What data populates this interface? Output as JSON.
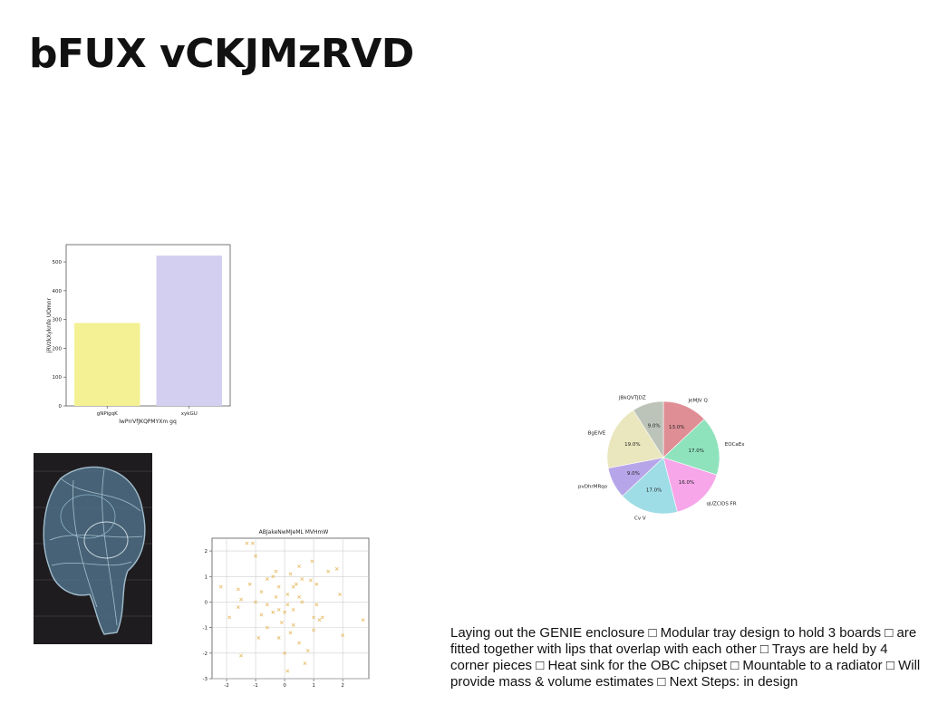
{
  "slide": {
    "title": "bFUX vCKJMzRVD",
    "body_text": "Laying out the GENIE enclosure □ Modular tray design to hold 3 boards □ are fitted together with lips that overlap with each other □ Trays are held by 4 corner pieces □ Heat sink for the OBC chipset □ Mountable to a radiator □ Will provide mass & volume estimates □ Next Steps: in design"
  },
  "image": {
    "icon": "brain-wireframe-image"
  },
  "chart_data": [
    {
      "type": "bar",
      "title": "",
      "xlabel": "lwPrrVfJKQPMYXm gq",
      "ylabel": "jRVzkXyknfe UOmnr",
      "categories": [
        "gNPlgqK",
        "xykGU"
      ],
      "values": [
        288,
        522
      ],
      "colors": [
        "#f3f193",
        "#d3cff0"
      ],
      "ylim": [
        0,
        560
      ],
      "yticks": [
        "0",
        "100",
        "200",
        "300",
        "400",
        "500"
      ],
      "grid": false
    },
    {
      "type": "scatter",
      "title": "ABJakeNwMJeML MVHmW",
      "xlim": [
        -2.5,
        2.9
      ],
      "ylim": [
        -3,
        2.5
      ],
      "xticks": [
        "-2",
        "-1",
        "0",
        "1",
        "2"
      ],
      "yticks": [
        "-3",
        "-2",
        "-1",
        "0",
        "1",
        "2"
      ],
      "grid": true,
      "marker": "x",
      "color": "#e8c070",
      "points": [
        [
          -1.1,
          2.3
        ],
        [
          -1.3,
          2.3
        ],
        [
          -1,
          1.8
        ],
        [
          0.95,
          1.6
        ],
        [
          0.5,
          1.4
        ],
        [
          1.5,
          1.2
        ],
        [
          -0.3,
          1.2
        ],
        [
          0.2,
          1.1
        ],
        [
          -0.4,
          1.0
        ],
        [
          -0.6,
          0.9
        ],
        [
          0.6,
          0.9
        ],
        [
          0.9,
          0.85
        ],
        [
          1.1,
          0.7
        ],
        [
          0.3,
          0.6
        ],
        [
          -0.2,
          0.6
        ],
        [
          -2.2,
          0.6
        ],
        [
          -1.6,
          0.5
        ],
        [
          -0.8,
          0.4
        ],
        [
          0.1,
          0.3
        ],
        [
          1.9,
          0.3
        ],
        [
          -0.3,
          0.2
        ],
        [
          0.5,
          0.2
        ],
        [
          -1.5,
          0.1
        ],
        [
          -1,
          0.0
        ],
        [
          0.6,
          0.0
        ],
        [
          0.1,
          -0.1
        ],
        [
          -0.6,
          -0.1
        ],
        [
          1.1,
          -0.1
        ],
        [
          -1.6,
          -0.2
        ],
        [
          -0.2,
          -0.3
        ],
        [
          0.3,
          -0.3
        ],
        [
          0.0,
          -0.4
        ],
        [
          -0.8,
          -0.5
        ],
        [
          1.0,
          -0.6
        ],
        [
          -1.9,
          -0.6
        ],
        [
          1.2,
          -0.7
        ],
        [
          2.7,
          -0.7
        ],
        [
          -0.1,
          -0.8
        ],
        [
          0.3,
          -0.9
        ],
        [
          -0.6,
          -1.0
        ],
        [
          1.0,
          -1.1
        ],
        [
          0.2,
          -1.2
        ],
        [
          2.0,
          -1.3
        ],
        [
          -0.2,
          -1.4
        ],
        [
          0.5,
          -1.6
        ],
        [
          0.8,
          -1.9
        ],
        [
          -1.5,
          -2.1
        ],
        [
          0.0,
          -2.0
        ],
        [
          0.7,
          -2.4
        ],
        [
          0.1,
          -2.7
        ],
        [
          1.3,
          -0.6
        ],
        [
          -0.4,
          -0.4
        ],
        [
          0.4,
          0.7
        ],
        [
          -1.2,
          0.7
        ],
        [
          1.8,
          1.3
        ],
        [
          -0.9,
          -1.4
        ]
      ]
    },
    {
      "type": "pie",
      "title": "",
      "slices": [
        {
          "label": "JeMJV Q",
          "value": 13.0,
          "pct": "13.0%",
          "color": "#e08e96"
        },
        {
          "label": "EOCaEx",
          "value": 17.0,
          "pct": "17.0%",
          "color": "#8ee3bc"
        },
        {
          "label": "qUZClDS FR",
          "value": 16.0,
          "pct": "16.0%",
          "color": "#f6a6e9"
        },
        {
          "label": "Cv V",
          "value": 17.0,
          "pct": "17.0%",
          "color": "#9fdde6"
        },
        {
          "label": "pvDhrMRqo",
          "value": 9.0,
          "pct": "9.0%",
          "color": "#b6a6e9"
        },
        {
          "label": "BgEIVE",
          "value": 19.0,
          "pct": "19.0%",
          "color": "#eae6bd"
        },
        {
          "label": "JBkQVTJDZ",
          "value": 9.0,
          "pct": "9.0%",
          "color": "#bcc4b9"
        }
      ]
    }
  ]
}
